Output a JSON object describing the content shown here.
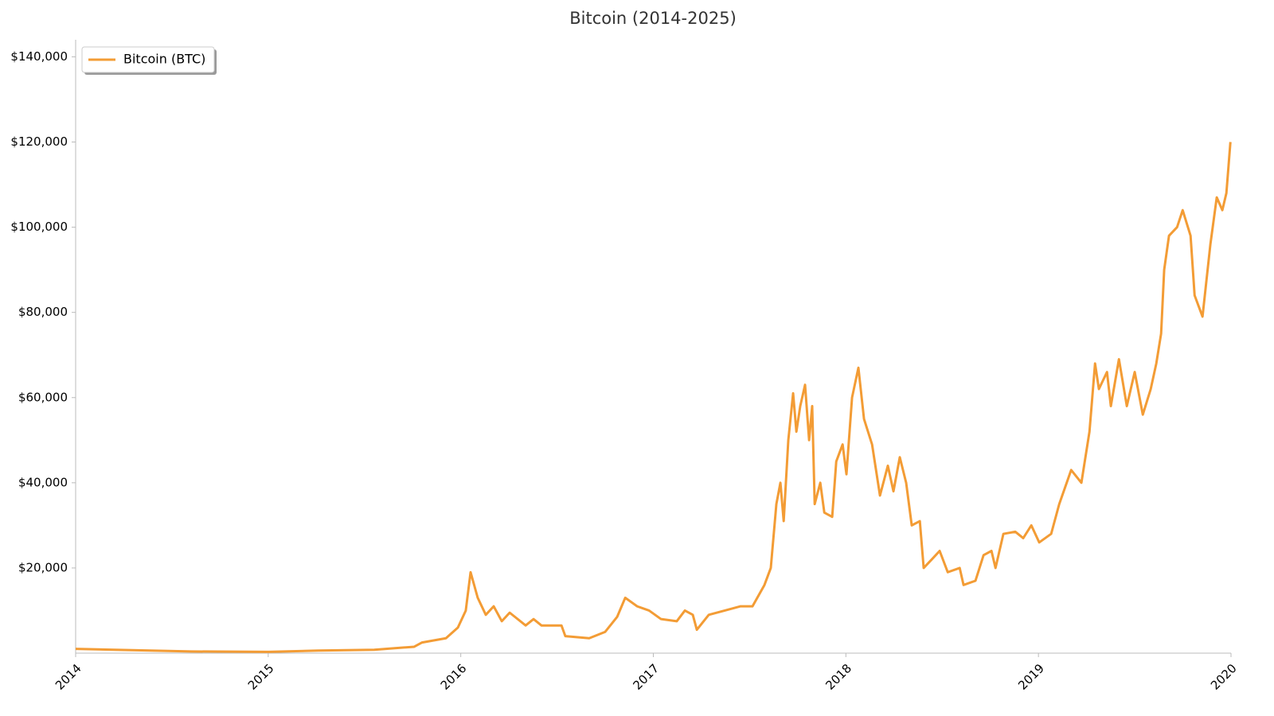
{
  "chart_data": {
    "type": "line",
    "title": "Bitcoin (2014-2025)",
    "xlim": [
      2014,
      2020
    ],
    "xticks": [
      2014,
      2015,
      2016,
      2017,
      2018,
      2019,
      2020
    ],
    "ylim": [
      0,
      144000
    ],
    "yticks": [
      {
        "value": 20000,
        "label": "$20,000"
      },
      {
        "value": 40000,
        "label": "$40,000"
      },
      {
        "value": 60000,
        "label": "$60,000"
      },
      {
        "value": 80000,
        "label": "$80,000"
      },
      {
        "value": 100000,
        "label": "$100,000"
      },
      {
        "value": 120000,
        "label": "$120,000"
      },
      {
        "value": 140000,
        "label": "$140,000"
      }
    ],
    "grid": false,
    "legend": "upper-left",
    "x": [
      2014.0,
      2014.6,
      2015.001,
      2015.261,
      2015.551,
      2015.758,
      2015.799,
      2015.923,
      2015.985,
      2016.026,
      2016.051,
      2016.088,
      2016.13,
      2016.171,
      2016.213,
      2016.254,
      2016.337,
      2016.378,
      2016.419,
      2016.523,
      2016.543,
      2016.667,
      2016.75,
      2016.812,
      2016.854,
      2016.916,
      2016.978,
      2017.04,
      2017.122,
      2017.164,
      2017.205,
      2017.226,
      2017.288,
      2017.371,
      2017.453,
      2017.515,
      2017.577,
      2017.61,
      2017.639,
      2017.66,
      2017.677,
      2017.701,
      2017.726,
      2017.743,
      2017.763,
      2017.788,
      2017.809,
      2017.825,
      2017.838,
      2017.867,
      2017.888,
      2017.929,
      2017.95,
      2017.983,
      2018.003,
      2018.032,
      2018.065,
      2018.094,
      2018.136,
      2018.177,
      2018.218,
      2018.247,
      2018.28,
      2018.313,
      2018.342,
      2018.384,
      2018.404,
      2018.446,
      2018.487,
      2018.529,
      2018.591,
      2018.611,
      2018.673,
      2018.715,
      2018.756,
      2018.777,
      2018.818,
      2018.88,
      2018.921,
      2018.963,
      2019.004,
      2019.066,
      2019.108,
      2019.17,
      2019.223,
      2019.265,
      2019.294,
      2019.314,
      2019.356,
      2019.376,
      2019.418,
      2019.459,
      2019.5,
      2019.542,
      2019.583,
      2019.612,
      2019.637,
      2019.653,
      2019.678,
      2019.72,
      2019.749,
      2019.79,
      2019.811,
      2019.852,
      2019.893,
      2019.926,
      2019.955,
      2019.976,
      2019.997
    ],
    "series": [
      {
        "name": "Bitcoin (BTC)",
        "color": "#f39c35",
        "values": [
          1000,
          400,
          300,
          600,
          800,
          1500,
          2500,
          3500,
          6000,
          10000,
          19000,
          13000,
          9000,
          11000,
          7500,
          9500,
          6500,
          8000,
          6500,
          6500,
          4000,
          3500,
          5000,
          8500,
          13000,
          11000,
          10000,
          8000,
          7500,
          10000,
          9000,
          5500,
          9000,
          10000,
          11000,
          11000,
          16000,
          20000,
          35000,
          40000,
          31000,
          50000,
          61000,
          52000,
          58000,
          63000,
          50000,
          58000,
          35000,
          40000,
          33000,
          32000,
          45000,
          49000,
          42000,
          60000,
          67000,
          55000,
          49000,
          37000,
          44000,
          38000,
          46000,
          40000,
          30000,
          31000,
          20000,
          22000,
          24000,
          19000,
          20000,
          16000,
          17000,
          23000,
          24000,
          20000,
          28000,
          28500,
          27000,
          30000,
          26000,
          28000,
          35000,
          43000,
          40000,
          52000,
          68000,
          62000,
          66000,
          58000,
          69000,
          58000,
          66000,
          56000,
          62000,
          68000,
          75000,
          90000,
          98000,
          100000,
          104000,
          98000,
          84000,
          79000,
          96000,
          107000,
          104000,
          108000,
          120000
        ]
      }
    ]
  }
}
